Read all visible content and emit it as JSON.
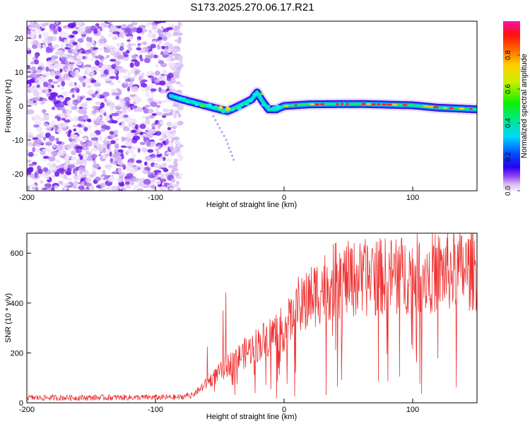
{
  "title": "S173.2025.270.06.17.R21",
  "chart_data": [
    {
      "type": "heatmap",
      "xlabel": "Height of straight line (km)",
      "ylabel": "Frequency (Hz)",
      "xlim": [
        -200,
        150
      ],
      "ylim": [
        -25,
        25
      ],
      "xticks": [
        -200,
        -100,
        0,
        100
      ],
      "yticks": [
        -20,
        -10,
        0,
        10,
        20
      ],
      "colorbar": {
        "label": "Normalized spectral amplitude",
        "range": [
          0,
          1
        ],
        "ticks": [
          0.0,
          0.2,
          0.4,
          0.6,
          0.8
        ]
      },
      "features": {
        "noise_region_x": [
          -200,
          -88
        ],
        "ridge": [
          {
            "x": -88,
            "f": 3
          },
          {
            "x": -80,
            "f": 2
          },
          {
            "x": -70,
            "f": 1
          },
          {
            "x": -60,
            "f": 0
          },
          {
            "x": -50,
            "f": -1
          },
          {
            "x": -44,
            "f": -1.5
          },
          {
            "x": -38,
            "f": -0.5
          },
          {
            "x": -30,
            "f": 1
          },
          {
            "x": -25,
            "f": 2
          },
          {
            "x": -21,
            "f": 4
          },
          {
            "x": -17,
            "f": 1.5
          },
          {
            "x": -12,
            "f": -1
          },
          {
            "x": -6,
            "f": -1
          },
          {
            "x": 0,
            "f": 0
          },
          {
            "x": 20,
            "f": 0.5
          },
          {
            "x": 60,
            "f": 0.6
          },
          {
            "x": 100,
            "f": 0.2
          },
          {
            "x": 120,
            "f": -0.5
          },
          {
            "x": 150,
            "f": -1
          }
        ],
        "dipping_tail": [
          {
            "x": -55,
            "f": -3
          },
          {
            "x": -45,
            "f": -10
          },
          {
            "x": -38,
            "f": -17
          }
        ]
      }
    },
    {
      "type": "line",
      "xlabel": "Height of straight line (km)",
      "ylabel": "SNR (10 * v/v)",
      "xlim": [
        -200,
        150
      ],
      "ylim": [
        0,
        680
      ],
      "xticks": [
        -200,
        -100,
        0,
        100
      ],
      "yticks": [
        0,
        200,
        400,
        600
      ],
      "series": [
        {
          "name": "SNR",
          "color": "#ee3333",
          "envelope_x": [
            -200,
            -80,
            -70,
            -60,
            -50,
            -40,
            -30,
            -20,
            -10,
            0,
            10,
            20,
            30,
            40,
            60,
            80,
            100,
            120,
            150
          ],
          "envelope_y": [
            20,
            22,
            40,
            90,
            140,
            190,
            230,
            270,
            310,
            340,
            410,
            480,
            530,
            560,
            570,
            580,
            590,
            600,
            610
          ]
        }
      ]
    }
  ]
}
